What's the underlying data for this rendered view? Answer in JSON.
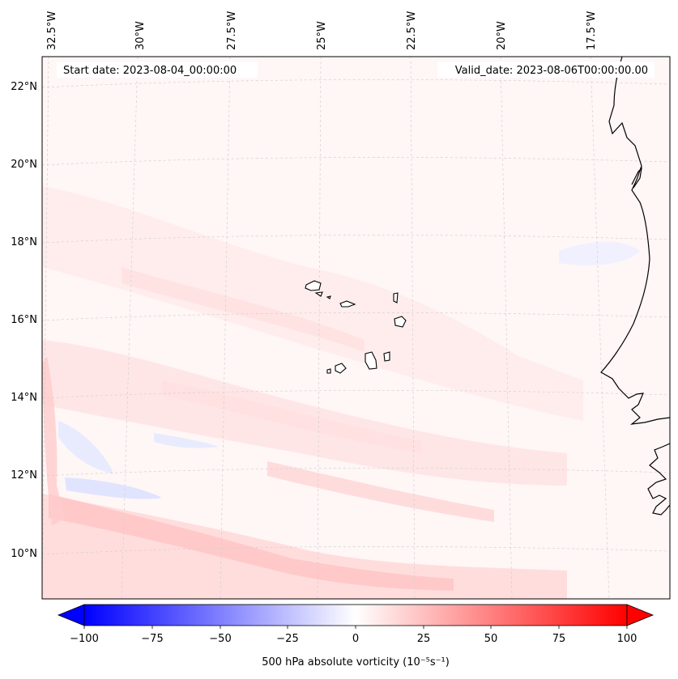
{
  "map": {
    "start_date_text": "Start date: 2023-08-04_00:00:00",
    "valid_date_text": "Valid_date: 2023-08-06T00:00:00.00",
    "longitude_labels": [
      "32.5°W",
      "30°W",
      "27.5°W",
      "25°W",
      "22.5°W",
      "20°W",
      "17.5°W"
    ],
    "latitude_labels": [
      "22°N",
      "20°N",
      "18°N",
      "16°N",
      "14°N",
      "12°N",
      "10°N"
    ],
    "coastline_color": "#000000",
    "gridline_color": "#cccccc",
    "field_colors": {
      "light_red": "#ffe6e6",
      "mid_red": "#ffc4c4",
      "light_blue": "#e6eaff",
      "mid_blue": "#c8d0ff"
    }
  },
  "colorbar": {
    "label": "500 hPa absolute vorticity (10⁻⁵s⁻¹)",
    "ticks": [
      "−100",
      "−75",
      "−50",
      "−25",
      "0",
      "25",
      "50",
      "75",
      "100"
    ],
    "min": -100,
    "max": 100,
    "colors": {
      "negative": "#0000ff",
      "zero": "#ffffff",
      "positive": "#ff0000"
    }
  }
}
